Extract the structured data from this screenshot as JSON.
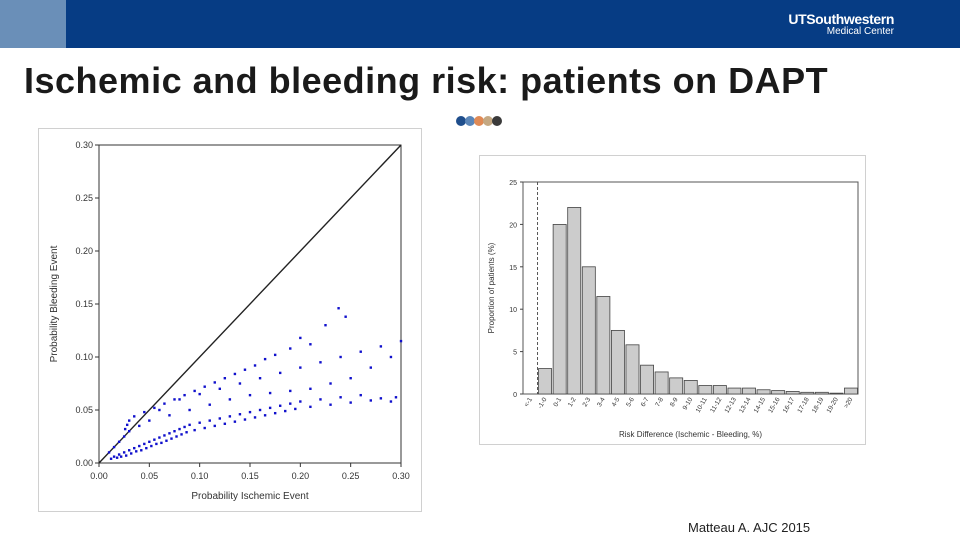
{
  "header": {
    "logo_line1": "UTSouthwestern",
    "logo_line2": "Medical Center",
    "colors": {
      "bar": "#063c84",
      "accent": "#6a8fb8"
    }
  },
  "title": "Ischemic and bleeding risk: patients on DAPT",
  "decor_dot_colors": [
    "#1f4e8c",
    "#5b86b8",
    "#e08a55",
    "#c4a882",
    "#3a3a3a"
  ],
  "citation": "Matteau A. AJC 2015",
  "chart_data": [
    {
      "type": "scatter",
      "xlabel": "Probability Ischemic Event",
      "ylabel": "Probability Bleeding Event",
      "xlim": [
        0,
        0.3
      ],
      "ylim": [
        0,
        0.3
      ],
      "xticks": [
        "0.00",
        "0.05",
        "0.10",
        "0.15",
        "0.20",
        "0.25",
        "0.30"
      ],
      "yticks": [
        "0.00",
        "0.05",
        "0.10",
        "0.15",
        "0.20",
        "0.25",
        "0.30"
      ],
      "identity_line": [
        [
          0,
          0
        ],
        [
          0.3,
          0.3
        ]
      ],
      "point_color": "#1010cc",
      "points": [
        [
          0.012,
          0.004
        ],
        [
          0.015,
          0.006
        ],
        [
          0.018,
          0.005
        ],
        [
          0.02,
          0.008
        ],
        [
          0.022,
          0.006
        ],
        [
          0.025,
          0.01
        ],
        [
          0.027,
          0.007
        ],
        [
          0.03,
          0.012
        ],
        [
          0.032,
          0.009
        ],
        [
          0.035,
          0.014
        ],
        [
          0.037,
          0.011
        ],
        [
          0.04,
          0.016
        ],
        [
          0.042,
          0.012
        ],
        [
          0.045,
          0.018
        ],
        [
          0.047,
          0.014
        ],
        [
          0.05,
          0.02
        ],
        [
          0.052,
          0.016
        ],
        [
          0.055,
          0.022
        ],
        [
          0.057,
          0.018
        ],
        [
          0.06,
          0.024
        ],
        [
          0.062,
          0.019
        ],
        [
          0.065,
          0.026
        ],
        [
          0.067,
          0.021
        ],
        [
          0.07,
          0.028
        ],
        [
          0.072,
          0.023
        ],
        [
          0.075,
          0.03
        ],
        [
          0.077,
          0.025
        ],
        [
          0.08,
          0.032
        ],
        [
          0.082,
          0.027
        ],
        [
          0.085,
          0.034
        ],
        [
          0.087,
          0.029
        ],
        [
          0.09,
          0.036
        ],
        [
          0.095,
          0.031
        ],
        [
          0.1,
          0.038
        ],
        [
          0.105,
          0.033
        ],
        [
          0.11,
          0.04
        ],
        [
          0.115,
          0.035
        ],
        [
          0.12,
          0.042
        ],
        [
          0.125,
          0.037
        ],
        [
          0.13,
          0.044
        ],
        [
          0.135,
          0.039
        ],
        [
          0.14,
          0.046
        ],
        [
          0.145,
          0.041
        ],
        [
          0.15,
          0.048
        ],
        [
          0.155,
          0.043
        ],
        [
          0.16,
          0.05
        ],
        [
          0.165,
          0.045
        ],
        [
          0.17,
          0.052
        ],
        [
          0.175,
          0.047
        ],
        [
          0.18,
          0.054
        ],
        [
          0.185,
          0.049
        ],
        [
          0.19,
          0.056
        ],
        [
          0.195,
          0.051
        ],
        [
          0.2,
          0.058
        ],
        [
          0.21,
          0.053
        ],
        [
          0.22,
          0.06
        ],
        [
          0.23,
          0.055
        ],
        [
          0.24,
          0.062
        ],
        [
          0.25,
          0.057
        ],
        [
          0.26,
          0.064
        ],
        [
          0.27,
          0.059
        ],
        [
          0.28,
          0.061
        ],
        [
          0.29,
          0.058
        ],
        [
          0.295,
          0.062
        ],
        [
          0.06,
          0.05
        ],
        [
          0.08,
          0.06
        ],
        [
          0.1,
          0.065
        ],
        [
          0.12,
          0.07
        ],
        [
          0.14,
          0.075
        ],
        [
          0.16,
          0.08
        ],
        [
          0.18,
          0.085
        ],
        [
          0.2,
          0.09
        ],
        [
          0.22,
          0.095
        ],
        [
          0.24,
          0.1
        ],
        [
          0.26,
          0.105
        ],
        [
          0.28,
          0.11
        ],
        [
          0.3,
          0.115
        ],
        [
          0.29,
          0.1
        ],
        [
          0.27,
          0.09
        ],
        [
          0.25,
          0.08
        ],
        [
          0.23,
          0.075
        ],
        [
          0.21,
          0.07
        ],
        [
          0.19,
          0.068
        ],
        [
          0.17,
          0.066
        ],
        [
          0.15,
          0.064
        ],
        [
          0.13,
          0.06
        ],
        [
          0.11,
          0.055
        ],
        [
          0.09,
          0.05
        ],
        [
          0.07,
          0.045
        ],
        [
          0.05,
          0.04
        ],
        [
          0.04,
          0.035
        ],
        [
          0.03,
          0.03
        ],
        [
          0.025,
          0.025
        ],
        [
          0.02,
          0.02
        ],
        [
          0.015,
          0.015
        ],
        [
          0.01,
          0.01
        ],
        [
          0.238,
          0.146
        ],
        [
          0.245,
          0.138
        ],
        [
          0.225,
          0.13
        ],
        [
          0.2,
          0.118
        ],
        [
          0.21,
          0.112
        ],
        [
          0.19,
          0.108
        ],
        [
          0.175,
          0.102
        ],
        [
          0.165,
          0.098
        ],
        [
          0.155,
          0.092
        ],
        [
          0.145,
          0.088
        ],
        [
          0.135,
          0.084
        ],
        [
          0.125,
          0.08
        ],
        [
          0.115,
          0.076
        ],
        [
          0.105,
          0.072
        ],
        [
          0.095,
          0.068
        ],
        [
          0.085,
          0.064
        ],
        [
          0.075,
          0.06
        ],
        [
          0.065,
          0.056
        ],
        [
          0.055,
          0.052
        ],
        [
          0.045,
          0.048
        ],
        [
          0.035,
          0.044
        ],
        [
          0.03,
          0.04
        ],
        [
          0.028,
          0.036
        ],
        [
          0.026,
          0.032
        ]
      ]
    },
    {
      "type": "bar",
      "xlabel": "Risk Difference (Ischemic - Bleeding, %)",
      "ylabel": "Proportion of patients (%)",
      "ylim": [
        0,
        25
      ],
      "yticks": [
        "0",
        "5",
        "10",
        "15",
        "20",
        "25"
      ],
      "reference_line_category": "<-1",
      "categories": [
        "<-1",
        "-1-0",
        "0-1",
        "1-2",
        "2-3",
        "3-4",
        "4-5",
        "5-6",
        "6-7",
        "7-8",
        "8-9",
        "9-10",
        "10-11",
        "11-12",
        "12-13",
        "13-14",
        "14-15",
        "15-16",
        "16-17",
        "17-18",
        "18-19",
        "19-20",
        ">20"
      ],
      "values": [
        0,
        3,
        20,
        22,
        15,
        11.5,
        7.5,
        5.8,
        3.4,
        2.6,
        1.9,
        1.6,
        1.0,
        1.0,
        0.7,
        0.7,
        0.5,
        0.4,
        0.3,
        0.2,
        0.2,
        0.1,
        0.7
      ],
      "bar_color": "#cccccc"
    }
  ]
}
